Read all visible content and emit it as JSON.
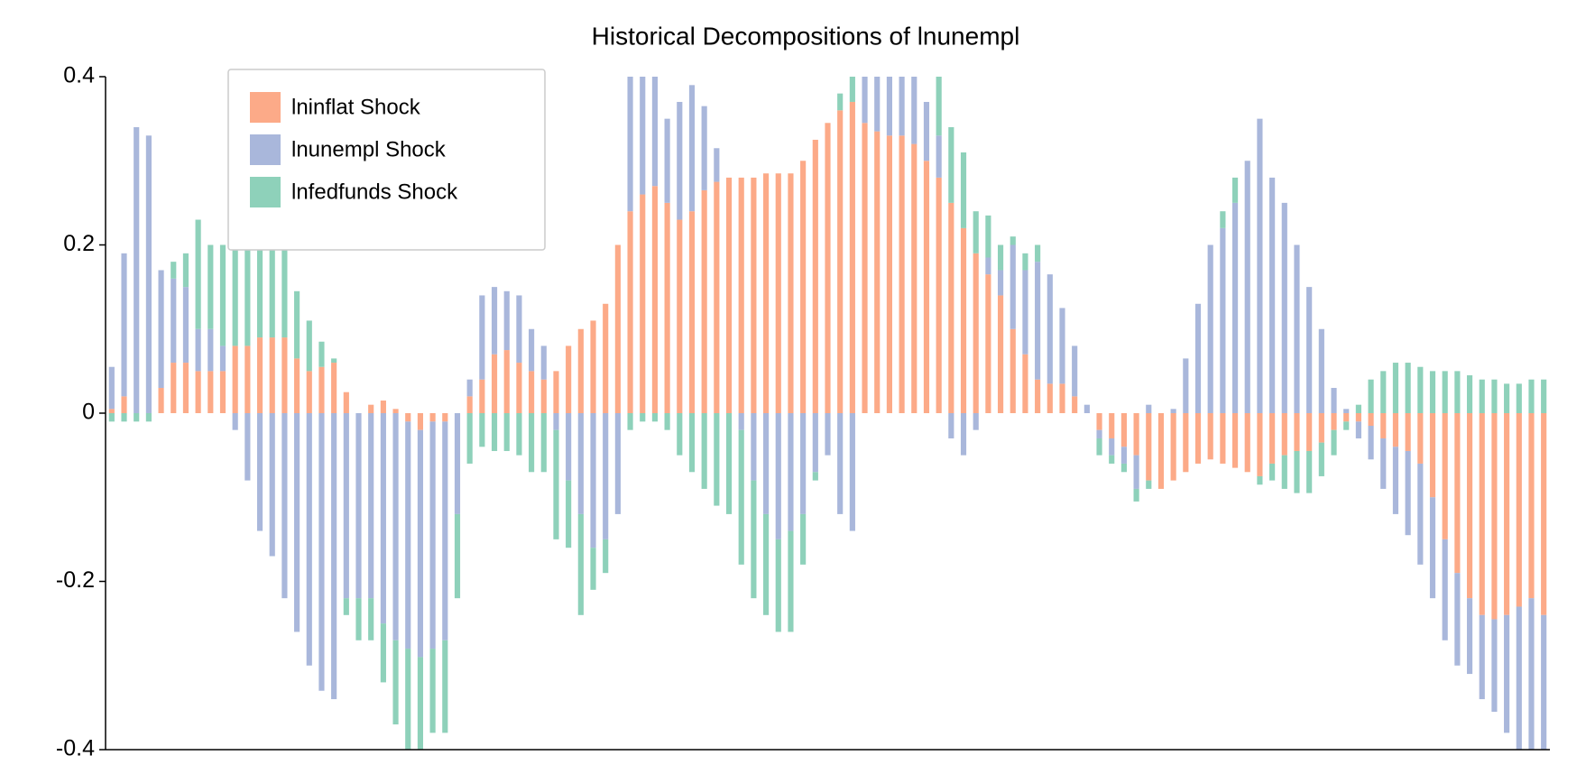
{
  "chart_data": {
    "type": "bar",
    "stacked": true,
    "title": "Historical Decompositions of lnunempl",
    "legend": "upper left",
    "ylim": [
      -0.4,
      0.4
    ],
    "yticks": [
      -0.4,
      -0.2,
      0,
      0.2,
      0.4
    ],
    "series": [
      {
        "name": "lninflat Shock",
        "color": "#fcaa88",
        "values": [
          0.005,
          0.02,
          0,
          0,
          0.03,
          0.06,
          0.06,
          0.05,
          0.05,
          0.05,
          0.08,
          0.08,
          0.09,
          0.09,
          0.09,
          0.065,
          0.05,
          0.055,
          0.06,
          0.025,
          0,
          0.01,
          0.015,
          0.005,
          -0.01,
          -0.02,
          -0.01,
          -0.01,
          0,
          0.02,
          0.04,
          0.07,
          0.075,
          0.06,
          0.05,
          0.04,
          0.05,
          0.08,
          0.1,
          0.11,
          0.13,
          0.2,
          0.24,
          0.26,
          0.27,
          0.25,
          0.23,
          0.24,
          0.265,
          0.275,
          0.28,
          0.28,
          0.28,
          0.285,
          0.285,
          0.285,
          0.3,
          0.325,
          0.345,
          0.36,
          0.37,
          0.345,
          0.335,
          0.33,
          0.33,
          0.32,
          0.3,
          0.28,
          0.25,
          0.22,
          0.19,
          0.165,
          0.14,
          0.1,
          0.07,
          0.04,
          0.035,
          0.035,
          0.02,
          0,
          -0.02,
          -0.03,
          -0.04,
          -0.05,
          -0.08,
          -0.09,
          -0.08,
          -0.07,
          -0.06,
          -0.055,
          -0.06,
          -0.065,
          -0.07,
          -0.075,
          -0.06,
          -0.05,
          -0.045,
          -0.045,
          -0.035,
          -0.02,
          -0.01,
          -0.01,
          -0.015,
          -0.03,
          -0.04,
          -0.045,
          -0.06,
          -0.1,
          -0.15,
          -0.19,
          -0.22,
          -0.24,
          -0.245,
          -0.24,
          -0.23,
          -0.22,
          -0.24
        ]
      },
      {
        "name": "lnunempl Shock",
        "color": "#a9b7db",
        "values": [
          0.05,
          0.17,
          0.34,
          0.33,
          0.14,
          0.1,
          0.09,
          0.05,
          0.05,
          0.03,
          -0.02,
          -0.08,
          -0.14,
          -0.17,
          -0.22,
          -0.26,
          -0.3,
          -0.33,
          -0.34,
          -0.22,
          -0.22,
          -0.22,
          -0.25,
          -0.27,
          -0.27,
          -0.27,
          -0.27,
          -0.26,
          -0.12,
          0.02,
          0.1,
          0.08,
          0.07,
          0.08,
          0.05,
          0.04,
          -0.02,
          -0.08,
          -0.12,
          -0.16,
          -0.15,
          -0.12,
          0.2,
          0.2,
          0.15,
          0.1,
          0.14,
          0.15,
          0.1,
          0.04,
          0,
          -0.02,
          -0.08,
          -0.12,
          -0.15,
          -0.14,
          -0.12,
          -0.07,
          -0.05,
          -0.12,
          -0.14,
          0.06,
          0.08,
          0.1,
          0.1,
          0.08,
          0.07,
          0.05,
          -0.03,
          -0.05,
          -0.02,
          0.02,
          0.03,
          0.1,
          0.1,
          0.14,
          0.13,
          0.09,
          0.06,
          0.01,
          -0.01,
          -0.02,
          -0.02,
          -0.04,
          0.01,
          0,
          0.005,
          0.065,
          0.13,
          0.2,
          0.22,
          0.25,
          0.3,
          0.35,
          0.28,
          0.25,
          0.2,
          0.15,
          0.1,
          0.03,
          0.005,
          -0.02,
          -0.04,
          -0.06,
          -0.08,
          -0.1,
          -0.12,
          -0.12,
          -0.12,
          -0.11,
          -0.09,
          -0.1,
          -0.11,
          -0.14,
          -0.2,
          -0.19,
          -0.17
        ]
      },
      {
        "name": "lnfedfunds Shock",
        "color": "#8ed1ba",
        "values": [
          -0.01,
          -0.01,
          -0.01,
          -0.01,
          0,
          0.02,
          0.04,
          0.13,
          0.1,
          0.12,
          0.12,
          0.12,
          0.12,
          0.12,
          0.11,
          0.08,
          0.06,
          0.03,
          0.005,
          -0.02,
          -0.05,
          -0.05,
          -0.07,
          -0.1,
          -0.13,
          -0.12,
          -0.1,
          -0.11,
          -0.1,
          -0.06,
          -0.04,
          -0.045,
          -0.045,
          -0.05,
          -0.07,
          -0.07,
          -0.13,
          -0.08,
          -0.12,
          -0.05,
          -0.04,
          0,
          -0.02,
          -0.01,
          -0.01,
          -0.02,
          -0.05,
          -0.07,
          -0.09,
          -0.11,
          -0.12,
          -0.16,
          -0.14,
          -0.12,
          -0.11,
          -0.12,
          -0.06,
          -0.01,
          0,
          0.02,
          0.05,
          0.03,
          0.02,
          0,
          0,
          0,
          0,
          0.07,
          0.09,
          0.09,
          0.05,
          0.05,
          0.03,
          0.01,
          0.02,
          0.02,
          0,
          0,
          0,
          0,
          -0.02,
          -0.01,
          -0.01,
          -0.015,
          -0.01,
          0,
          0,
          0,
          0,
          0,
          0.02,
          0.03,
          0,
          -0.01,
          -0.02,
          -0.04,
          -0.05,
          -0.05,
          -0.04,
          -0.03,
          -0.01,
          0.01,
          0.04,
          0.05,
          0.06,
          0.06,
          0.055,
          0.05,
          0.05,
          0.05,
          0.045,
          0.04,
          0.04,
          0.035,
          0.035,
          0.04,
          0.04
        ]
      }
    ]
  }
}
